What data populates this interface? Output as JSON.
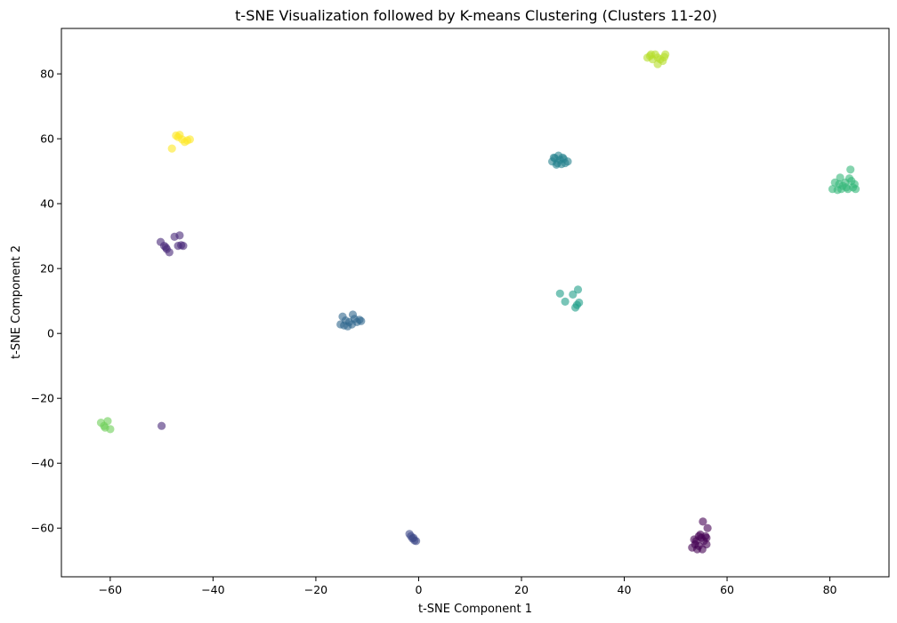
{
  "chart_data": {
    "type": "scatter",
    "title": "t-SNE Visualization followed by K-means Clustering (Clusters 11-20)",
    "xlabel": "t-SNE Component 1",
    "ylabel": "t-SNE Component 2",
    "xlim": [
      -69.5,
      91.5
    ],
    "ylim": [
      -75,
      94
    ],
    "xticks": [
      -60,
      -40,
      -20,
      0,
      20,
      40,
      60,
      80
    ],
    "yticks": [
      -60,
      -40,
      -20,
      0,
      20,
      40,
      60,
      80
    ],
    "xtick_labels": [
      "−60",
      "−40",
      "−20",
      "0",
      "20",
      "40",
      "60",
      "80"
    ],
    "ytick_labels": [
      "−60",
      "−40",
      "−20",
      "0",
      "20",
      "40",
      "60",
      "80"
    ],
    "grid": false,
    "legend": "none",
    "clusters": [
      {
        "color": "#440154",
        "points": [
          [
            53.2,
            -66
          ],
          [
            54,
            -64
          ],
          [
            54.5,
            -62.5
          ],
          [
            55,
            -63
          ],
          [
            55.5,
            -64
          ],
          [
            56,
            -65
          ],
          [
            54.2,
            -66.5
          ],
          [
            55.2,
            -66.5
          ],
          [
            53.8,
            -65
          ],
          [
            54.8,
            -62
          ],
          [
            55.3,
            -58
          ],
          [
            56.2,
            -60
          ],
          [
            56,
            -63
          ],
          [
            54.5,
            -65.5
          ],
          [
            53.6,
            -63.5
          ],
          [
            55.8,
            -62.5
          ]
        ]
      },
      {
        "color": "#482878",
        "points": [
          [
            -50,
            -28.5
          ],
          [
            -49.5,
            27
          ],
          [
            -49,
            26
          ],
          [
            -48.5,
            25
          ],
          [
            -47.5,
            29.8
          ],
          [
            -46.5,
            30.2
          ],
          [
            -46.2,
            27.2
          ],
          [
            -45.8,
            27
          ],
          [
            -50.2,
            28.2
          ],
          [
            -49.2,
            26.5
          ],
          [
            -46.8,
            27
          ]
        ]
      },
      {
        "color": "#3e4a89",
        "points": [
          [
            -1.8,
            -61.8
          ],
          [
            -1.5,
            -62.5
          ],
          [
            -1.2,
            -63.2
          ],
          [
            -0.8,
            -63.8
          ],
          [
            -0.5,
            -64
          ],
          [
            -1,
            -63
          ]
        ]
      },
      {
        "color": "#31688e",
        "points": [
          [
            -14.8,
            5.2
          ],
          [
            -14.2,
            4
          ],
          [
            -13.5,
            3.5
          ],
          [
            -12.8,
            5.8
          ],
          [
            -12.5,
            4.5
          ],
          [
            -11.5,
            4.2
          ],
          [
            -15.2,
            2.8
          ],
          [
            -14.5,
            2.5
          ],
          [
            -13,
            2.8
          ],
          [
            -12,
            3.5
          ],
          [
            -11.2,
            3.8
          ],
          [
            -13.8,
            2.2
          ]
        ]
      },
      {
        "color": "#26828e",
        "points": [
          [
            26,
            53
          ],
          [
            26.5,
            54
          ],
          [
            27,
            52.5
          ],
          [
            27.5,
            53.5
          ],
          [
            28,
            54.2
          ],
          [
            28.5,
            52.5
          ],
          [
            29,
            53
          ],
          [
            26.8,
            52
          ],
          [
            27.8,
            52.2
          ],
          [
            28.2,
            53.8
          ],
          [
            26.3,
            54.2
          ],
          [
            27.2,
            54.8
          ]
        ]
      },
      {
        "color": "#1f9e89",
        "points": [
          [
            27.5,
            12.3
          ],
          [
            28.5,
            9.8
          ],
          [
            30,
            12
          ],
          [
            30.5,
            8
          ],
          [
            31,
            13.5
          ],
          [
            31.2,
            9.5
          ],
          [
            30.8,
            8.8
          ]
        ]
      },
      {
        "color": "#35b779",
        "points": [
          [
            80.5,
            44.5
          ],
          [
            81,
            46.5
          ],
          [
            81.5,
            44.2
          ],
          [
            82,
            48
          ],
          [
            82.5,
            45.5
          ],
          [
            83,
            46.5
          ],
          [
            83.5,
            44.5
          ],
          [
            84,
            50.5
          ],
          [
            84.5,
            45
          ],
          [
            85,
            44.5
          ],
          [
            84.8,
            46
          ],
          [
            82.2,
            44.5
          ],
          [
            83.8,
            47.8
          ],
          [
            81.8,
            46
          ],
          [
            83.2,
            45
          ],
          [
            84.2,
            47
          ]
        ]
      },
      {
        "color": "#6ece58",
        "points": [
          [
            -61.8,
            -27.5
          ],
          [
            -61,
            -29
          ],
          [
            -60.5,
            -27
          ],
          [
            -60,
            -29.5
          ],
          [
            -61.2,
            -28.5
          ]
        ]
      },
      {
        "color": "#b5de2b",
        "points": [
          [
            44.5,
            85
          ],
          [
            45,
            85.5
          ],
          [
            45.5,
            84.5
          ],
          [
            46,
            86
          ],
          [
            46.5,
            85
          ],
          [
            47,
            84.5
          ],
          [
            47.5,
            84
          ],
          [
            48,
            86
          ],
          [
            46.5,
            83
          ],
          [
            45.2,
            86
          ],
          [
            47.8,
            85.2
          ]
        ]
      },
      {
        "color": "#fde725",
        "points": [
          [
            -48,
            57
          ],
          [
            -47.2,
            61
          ],
          [
            -46.5,
            61.2
          ],
          [
            -46,
            59.8
          ],
          [
            -45.5,
            59
          ],
          [
            -45,
            59.5
          ],
          [
            -44.5,
            59.8
          ],
          [
            -46.8,
            60.5
          ]
        ]
      }
    ]
  }
}
